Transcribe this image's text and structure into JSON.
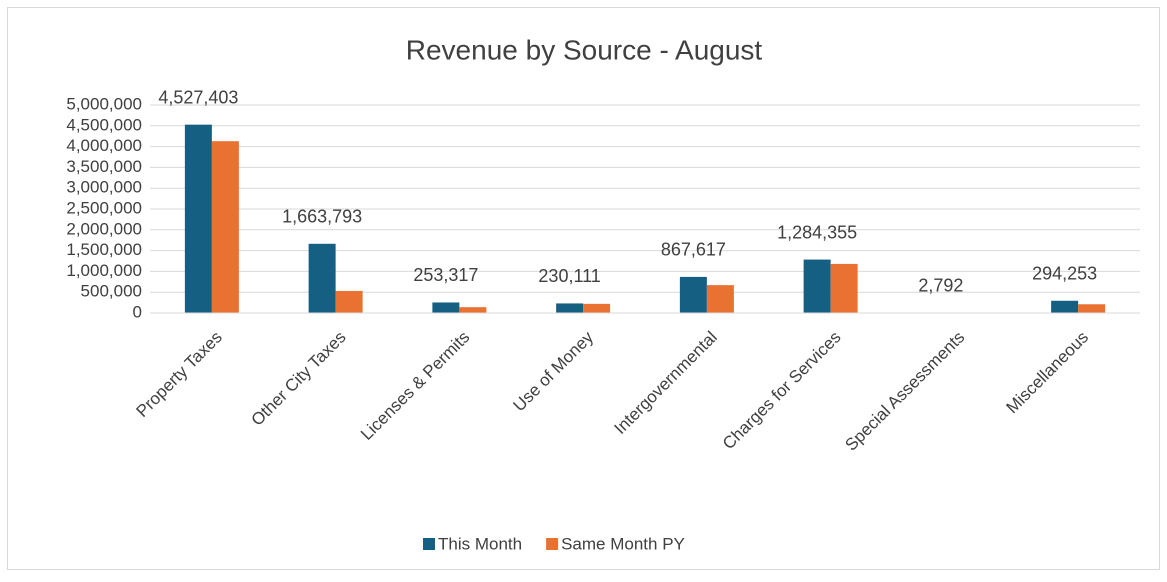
{
  "chart_data": {
    "type": "bar",
    "title": "Revenue by Source - August",
    "categories": [
      "Property Taxes",
      "Other City Taxes",
      "Licenses & Permits",
      "Use of Money",
      "Intergovernmental",
      "Charges for Services",
      "Special Assessments",
      "Miscellaneous"
    ],
    "series": [
      {
        "name": "This Month",
        "color": "#156082",
        "values": [
          4527403,
          1663793,
          253317,
          230111,
          867617,
          1284355,
          2792,
          294253
        ],
        "value_labels": [
          "4,527,403",
          "1,663,793",
          "253,317",
          "230,111",
          "867,617",
          "1,284,355",
          "2,792",
          "294,253"
        ]
      },
      {
        "name": "Same Month PY",
        "color": "#e97132",
        "values": [
          4130000,
          530000,
          140000,
          220000,
          670000,
          1180000,
          0,
          210000
        ]
      }
    ],
    "ylim": [
      0,
      5000000
    ],
    "yticks": [
      0,
      {
        "value": 500000,
        "label": "500,000"
      },
      {
        "value": 1000000,
        "label": "1,000,000"
      },
      {
        "value": 1500000,
        "label": "1,500,000"
      },
      {
        "value": 2000000,
        "label": "2,000,000"
      },
      {
        "value": 2500000,
        "label": "2,500,000"
      },
      {
        "value": 3000000,
        "label": "3,000,000"
      },
      {
        "value": 3500000,
        "label": "3,500,000"
      },
      {
        "value": 4000000,
        "label": "4,000,000"
      },
      {
        "value": 4500000,
        "label": "4,500,000"
      },
      {
        "value": 5000000,
        "label": "5,000,000"
      }
    ],
    "grid": true,
    "legend": "bottom"
  }
}
